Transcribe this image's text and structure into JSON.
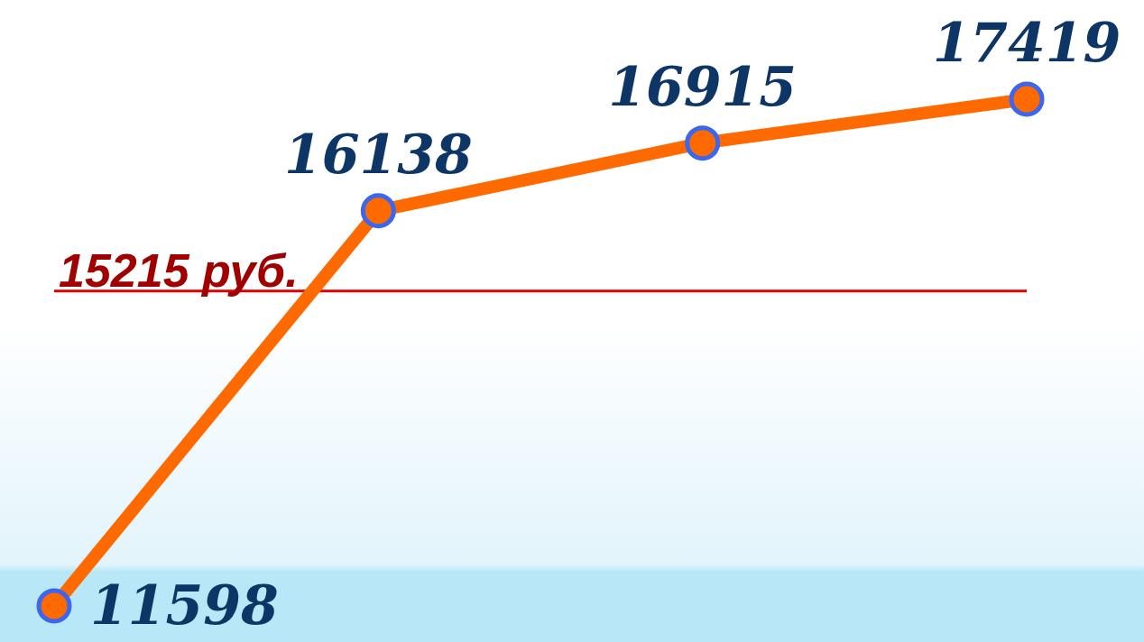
{
  "chart_data": {
    "type": "line",
    "categories": [
      null,
      null,
      null,
      null
    ],
    "series": [
      {
        "color": "#ff6a00",
        "values": [
          11598,
          16138,
          16915,
          17419
        ]
      }
    ],
    "data_labels": true,
    "marker": "circle",
    "tick_labels": false,
    "grid": false,
    "legend": false,
    "ref_lines": [
      {
        "axis": "y",
        "value": 15215,
        "label": "15215 руб.",
        "color": "#e00000"
      }
    ]
  }
}
